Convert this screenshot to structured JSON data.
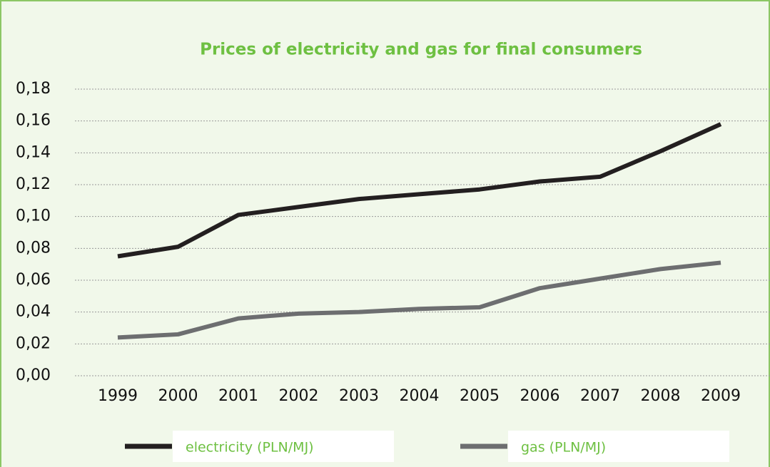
{
  "chart_data": {
    "type": "line",
    "title": "Prices of electricity and gas for final consumers",
    "categories": [
      "1999",
      "2000",
      "2001",
      "2002",
      "2003",
      "2004",
      "2005",
      "2006",
      "2007",
      "2008",
      "2009"
    ],
    "series": [
      {
        "name": "electricity (PLN/MJ)",
        "color": "#231f20",
        "values": [
          0.075,
          0.081,
          0.101,
          0.106,
          0.111,
          0.114,
          0.117,
          0.122,
          0.125,
          0.141,
          0.158
        ]
      },
      {
        "name": "gas (PLN/MJ)",
        "color": "#6d6e70",
        "values": [
          0.024,
          0.026,
          0.036,
          0.039,
          0.04,
          0.042,
          0.043,
          0.055,
          0.061,
          0.067,
          0.071
        ]
      }
    ],
    "ylim": [
      0,
      0.18
    ],
    "yticks": [
      {
        "value": 0,
        "label": "0,00"
      },
      {
        "value": 0.02,
        "label": "0,02"
      },
      {
        "value": 0.04,
        "label": "0,04"
      },
      {
        "value": 0.06,
        "label": "0,06"
      },
      {
        "value": 0.08,
        "label": "0,08"
      },
      {
        "value": 0.1,
        "label": "0,10"
      },
      {
        "value": 0.12,
        "label": "0,12"
      },
      {
        "value": 0.14,
        "label": "0,14"
      },
      {
        "value": 0.16,
        "label": "0,16"
      },
      {
        "value": 0.18,
        "label": "0,18"
      }
    ],
    "grid": true,
    "legend": "bottom"
  }
}
